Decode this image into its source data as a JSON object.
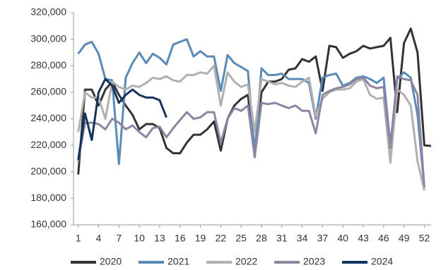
{
  "chart_data": {
    "type": "line",
    "x": [
      1,
      2,
      3,
      4,
      5,
      6,
      7,
      8,
      9,
      10,
      11,
      12,
      13,
      14,
      15,
      16,
      17,
      18,
      19,
      20,
      21,
      22,
      23,
      24,
      25,
      26,
      27,
      28,
      29,
      30,
      31,
      32,
      33,
      34,
      35,
      36,
      37,
      38,
      39,
      40,
      41,
      42,
      43,
      44,
      45,
      46,
      47,
      48,
      49,
      50,
      51,
      52,
      53
    ],
    "xlim": [
      0.3,
      53
    ],
    "xticks": [
      1,
      4,
      7,
      10,
      13,
      16,
      19,
      22,
      25,
      28,
      31,
      34,
      37,
      40,
      43,
      46,
      49,
      52
    ],
    "ylim": [
      160000,
      320000
    ],
    "yticks": [
      {
        "value": 160000,
        "label": "160,000"
      },
      {
        "value": 180000,
        "label": "180,000"
      },
      {
        "value": 200000,
        "label": "200,000"
      },
      {
        "value": 220000,
        "label": "220,000"
      },
      {
        "value": 240000,
        "label": "240,000"
      },
      {
        "value": 260000,
        "label": "260,000"
      },
      {
        "value": 280000,
        "label": "280,000"
      },
      {
        "value": 300000,
        "label": "300,000"
      },
      {
        "value": 320000,
        "label": "320,000"
      }
    ],
    "grid": false,
    "legend": "bottom",
    "series": [
      {
        "name": "2020",
        "color": "#333333",
        "values": [
          198000,
          262000,
          262000,
          250000,
          262000,
          268000,
          258000,
          250000,
          243000,
          232000,
          236000,
          236000,
          233000,
          218000,
          214000,
          214000,
          222000,
          228000,
          228000,
          232000,
          238000,
          216000,
          240000,
          250000,
          255000,
          258000,
          212000,
          260000,
          268000,
          268000,
          270000,
          277000,
          278000,
          285000,
          283000,
          287000,
          261000,
          295000,
          294000,
          286000,
          289000,
          291000,
          295000,
          293000,
          294000,
          295000,
          301000,
          245000,
          297000,
          308000,
          290000,
          220000,
          219500
        ]
      },
      {
        "name": "2021",
        "color": "#5a8ab8",
        "values": [
          289000,
          296000,
          298000,
          289000,
          270000,
          269000,
          206000,
          271000,
          282000,
          290000,
          282000,
          289000,
          286000,
          281000,
          296000,
          298000,
          300000,
          287000,
          291000,
          287000,
          287000,
          261000,
          288000,
          282000,
          279000,
          276000,
          214000,
          278000,
          273000,
          273000,
          274000,
          270000,
          270000,
          270000,
          267000,
          240000,
          271000,
          273000,
          274000,
          265000,
          267000,
          271000,
          272000,
          270000,
          267000,
          271000,
          220000,
          270000,
          275000,
          271000,
          243000,
          188000,
          null
        ]
      },
      {
        "name": "2022",
        "color": "#b0b0b0",
        "values": [
          230000,
          260000,
          256000,
          256000,
          240000,
          268000,
          264000,
          262000,
          265000,
          264000,
          267000,
          271000,
          270000,
          272000,
          269000,
          268000,
          273000,
          273000,
          275000,
          274000,
          280000,
          250000,
          275000,
          268000,
          264000,
          266000,
          230000,
          270000,
          268000,
          266000,
          267000,
          265000,
          264000,
          268000,
          271000,
          242000,
          255000,
          260000,
          262000,
          262000,
          263000,
          268000,
          270000,
          258000,
          255000,
          256000,
          207000,
          262000,
          258000,
          250000,
          208000,
          186000,
          null
        ]
      },
      {
        "name": "2023",
        "color": "#8f84a2",
        "values": [
          208000,
          237000,
          237000,
          236000,
          232000,
          240000,
          237000,
          232000,
          235000,
          230000,
          226000,
          233000,
          234000,
          226000,
          233000,
          239000,
          245000,
          240000,
          241000,
          245000,
          245000,
          222000,
          240000,
          248000,
          246000,
          250000,
          211000,
          252000,
          251000,
          252000,
          250000,
          248000,
          250000,
          246000,
          246000,
          229000,
          258000,
          261000,
          263000,
          264000,
          266000,
          270000,
          271000,
          265000,
          263000,
          264000,
          218000,
          272000,
          270000,
          269000,
          258000,
          189000,
          null
        ]
      },
      {
        "name": "2024",
        "color": "#14335e",
        "values": [
          209000,
          244000,
          224000,
          260000,
          270000,
          265000,
          252000,
          258000,
          262000,
          258000,
          256000,
          256000,
          254000,
          241000,
          null,
          null,
          null,
          null,
          null,
          null,
          null,
          null,
          null,
          null,
          null,
          null,
          null,
          null,
          null,
          null,
          null,
          null,
          null,
          null,
          null,
          null,
          null,
          null,
          null,
          null,
          null,
          null,
          null,
          null,
          null,
          null,
          null,
          null,
          null,
          null,
          null,
          null,
          null
        ]
      }
    ]
  }
}
